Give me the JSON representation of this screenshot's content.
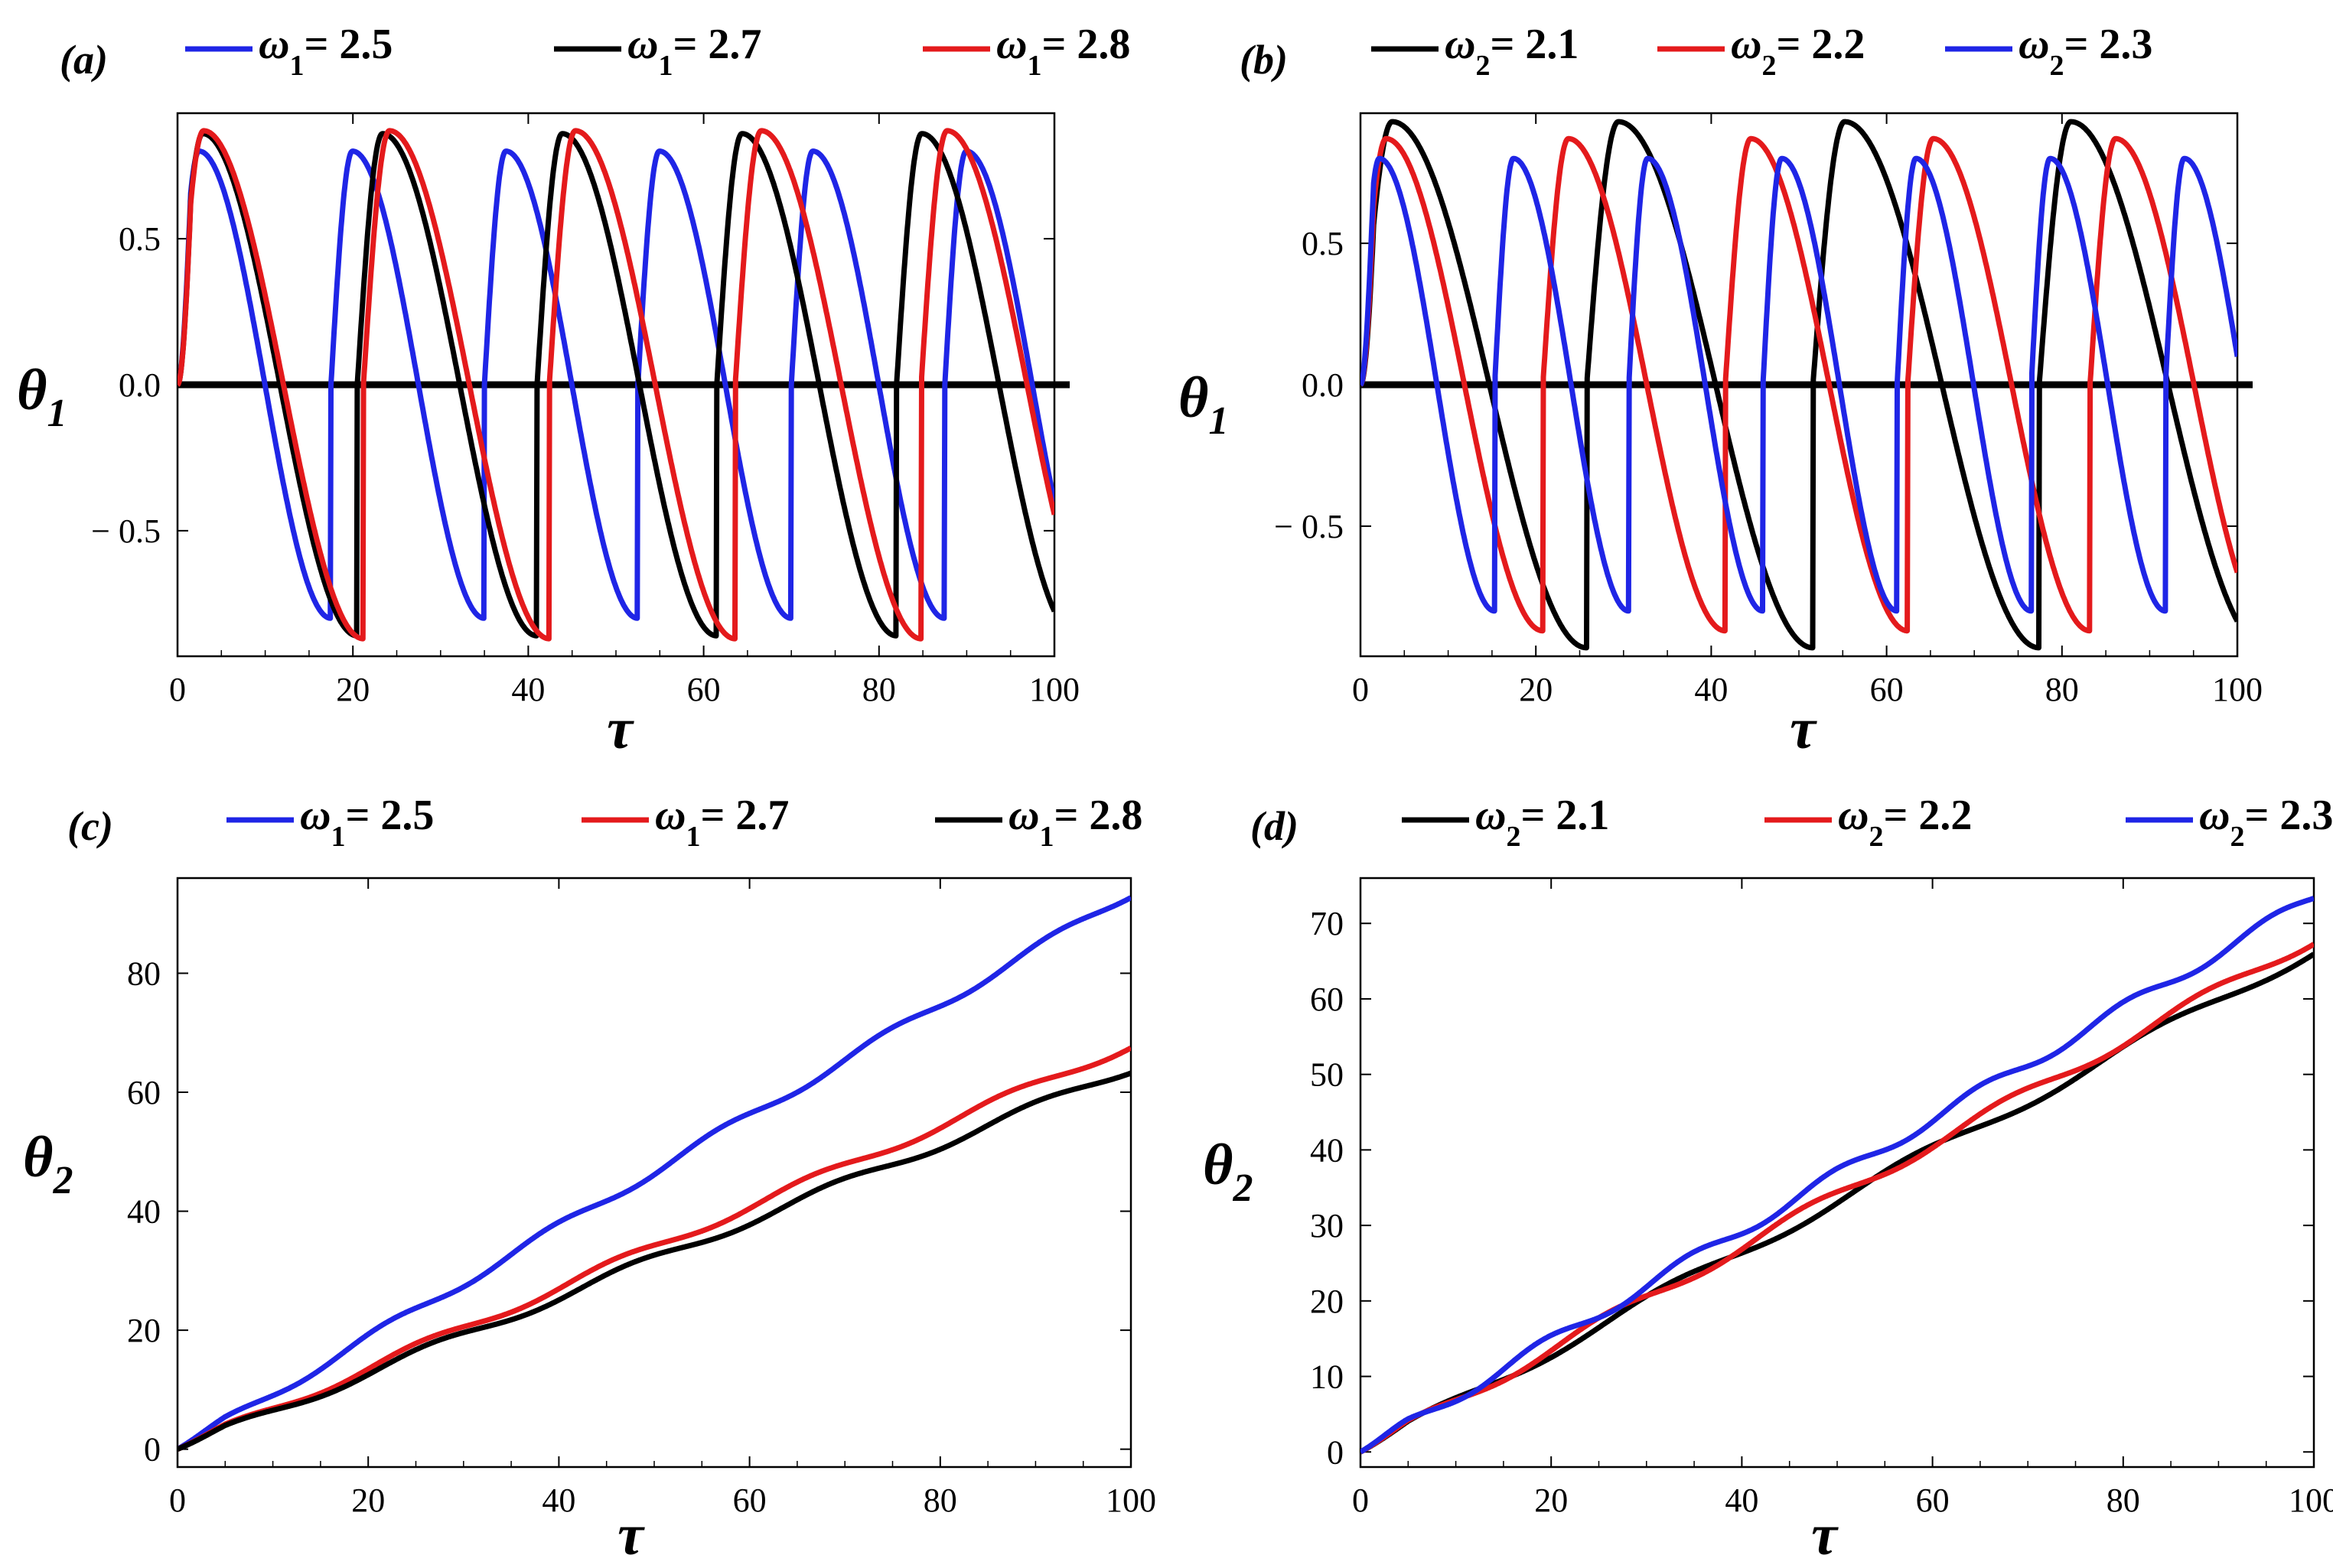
{
  "chart_data": [
    {
      "panel": "(a)",
      "type": "line",
      "xlabel": "τ",
      "ylabel": {
        "symbol": "θ",
        "sub": "1"
      },
      "xlim": [
        0,
        100
      ],
      "ylim": [
        -0.93,
        0.93
      ],
      "xticks": [
        0,
        20,
        40,
        60,
        80,
        100
      ],
      "xtick_labels": [
        "0",
        "20",
        "40",
        "60",
        "80",
        "100"
      ],
      "yticks": [
        -0.5,
        0.0,
        0.5
      ],
      "ytick_labels": [
        "− 0.5",
        "0.0",
        "0.5"
      ],
      "zero_line": true,
      "series": [
        {
          "name": "ω1 = 2.5",
          "legend_symbol": "ω",
          "legend_sub": "1",
          "legend_value": "= 2.5",
          "color": "#1f25e6",
          "model": "osc",
          "amp": 0.8,
          "period": 17.5,
          "tmax": 89,
          "duration": 100
        },
        {
          "name": "ω1 = 2.7",
          "legend_symbol": "ω",
          "legend_sub": "1",
          "legend_value": "= 2.7",
          "color": "#000000",
          "model": "osc",
          "amp": 0.86,
          "period": 20.5,
          "tmax": 83,
          "duration": 100
        },
        {
          "name": "ω1 = 2.8",
          "legend_symbol": "ω",
          "legend_sub": "1",
          "legend_value": "= 2.8",
          "color": "#e41a1c",
          "model": "osc",
          "amp": 0.87,
          "period": 21.2,
          "tmax": 86.5,
          "duration": 100
        }
      ]
    },
    {
      "panel": "(b)",
      "type": "line",
      "xlabel": "τ",
      "ylabel": {
        "symbol": "θ",
        "sub": "1"
      },
      "xlim": [
        0,
        100
      ],
      "ylim": [
        -0.96,
        0.96
      ],
      "xticks": [
        0,
        20,
        40,
        60,
        80,
        100
      ],
      "xtick_labels": [
        "0",
        "20",
        "40",
        "60",
        "80",
        "100"
      ],
      "yticks": [
        -0.5,
        0.0,
        0.5
      ],
      "ytick_labels": [
        "− 0.5",
        "0.0",
        "0.5"
      ],
      "zero_line": true,
      "series": [
        {
          "name": "ω2 = 2.1",
          "legend_symbol": "ω",
          "legend_sub": "2",
          "legend_value": "= 2.1",
          "color": "#000000",
          "model": "osc",
          "amp": 0.93,
          "period": 25.8,
          "tmax": 80.5,
          "duration": 100
        },
        {
          "name": "ω2 = 2.2",
          "legend_symbol": "ω",
          "legend_sub": "2",
          "legend_value": "= 2.2",
          "color": "#e41a1c",
          "model": "osc",
          "amp": 0.87,
          "period": 20.8,
          "tmax": 86,
          "duration": 100
        },
        {
          "name": "ω2 = 2.3",
          "legend_symbol": "ω",
          "legend_sub": "2",
          "legend_value": "= 2.3",
          "color": "#1f25e6",
          "model": "osc",
          "amp": 0.8,
          "period": 15.3,
          "tmax": 94,
          "duration": 100
        }
      ]
    },
    {
      "panel": "(c)",
      "type": "line",
      "xlabel": "τ",
      "ylabel": {
        "symbol": "θ",
        "sub": "2"
      },
      "xlim": [
        0,
        100
      ],
      "ylim": [
        -3,
        96
      ],
      "xticks": [
        0,
        20,
        40,
        60,
        80,
        100
      ],
      "xtick_labels": [
        "0",
        "20",
        "40",
        "60",
        "80",
        "100"
      ],
      "yticks": [
        0,
        20,
        40,
        60,
        80
      ],
      "ytick_labels": [
        "0",
        "20",
        "40",
        "60",
        "80"
      ],
      "zero_line": false,
      "series": [
        {
          "name": "ω1 = 2.5",
          "legend_symbol": "ω",
          "legend_sub": "1",
          "legend_value": "= 2.5",
          "color": "#1f25e6",
          "model": "ramp",
          "slope": 0.935,
          "wobble": 0.8,
          "period": 17.5,
          "duration": 100
        },
        {
          "name": "ω1 = 2.7",
          "legend_symbol": "ω",
          "legend_sub": "1",
          "legend_value": "= 2.7",
          "color": "#e41a1c",
          "model": "ramp",
          "slope": 0.68,
          "wobble": 0.8,
          "period": 20.5,
          "duration": 100
        },
        {
          "name": "ω1 = 2.8",
          "legend_symbol": "ω",
          "legend_sub": "1",
          "legend_value": "= 2.8",
          "color": "#000000",
          "model": "ramp",
          "slope": 0.64,
          "wobble": 0.8,
          "period": 21.2,
          "duration": 100
        }
      ]
    },
    {
      "panel": "(d)",
      "type": "line",
      "xlabel": "τ",
      "ylabel": {
        "symbol": "θ",
        "sub": "2"
      },
      "xlim": [
        0,
        100
      ],
      "ylim": [
        -2,
        76
      ],
      "xticks": [
        0,
        20,
        40,
        60,
        80,
        100
      ],
      "xtick_labels": [
        "0",
        "20",
        "40",
        "60",
        "80",
        "100"
      ],
      "yticks": [
        0,
        10,
        20,
        30,
        40,
        50,
        60,
        70
      ],
      "ytick_labels": [
        "0",
        "10",
        "20",
        "30",
        "40",
        "50",
        "60",
        "70"
      ],
      "zero_line": false,
      "series": [
        {
          "name": "ω2 = 2.1",
          "legend_symbol": "ω",
          "legend_sub": "2",
          "legend_value": "= 2.1",
          "color": "#000000",
          "model": "ramp",
          "slope": 0.665,
          "wobble": 0.8,
          "period": 25.8,
          "duration": 100
        },
        {
          "name": "ω2 = 2.2",
          "legend_symbol": "ω",
          "legend_sub": "2",
          "legend_value": "= 2.2",
          "color": "#e41a1c",
          "model": "ramp",
          "slope": 0.68,
          "wobble": 0.8,
          "period": 20.8,
          "duration": 100
        },
        {
          "name": "ω2 = 2.3",
          "legend_symbol": "ω",
          "legend_sub": "2",
          "legend_value": "= 2.3",
          "color": "#1f25e6",
          "model": "ramp",
          "slope": 0.735,
          "wobble": 0.8,
          "period": 15.3,
          "duration": 100
        }
      ]
    }
  ]
}
